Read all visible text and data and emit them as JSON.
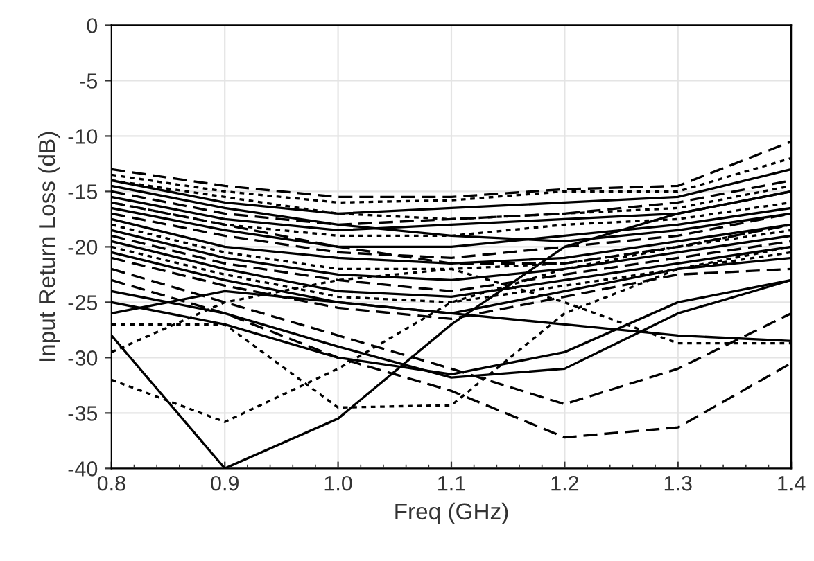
{
  "chart_data": {
    "type": "line",
    "xlabel": "Freq (GHz)",
    "ylabel": "Input Return Loss (dB)",
    "x": [
      0.8,
      0.9,
      1.0,
      1.1,
      1.2,
      1.3,
      1.4
    ],
    "xlim": [
      0.8,
      1.4
    ],
    "xticks": [
      {
        "value": 0.8,
        "label": "0.8"
      },
      {
        "value": 0.9,
        "label": "0.9"
      },
      {
        "value": 1.0,
        "label": "1.0"
      },
      {
        "value": 1.1,
        "label": "1.1"
      },
      {
        "value": 1.2,
        "label": "1.2"
      },
      {
        "value": 1.3,
        "label": "1.3"
      },
      {
        "value": 1.4,
        "label": "1.4"
      }
    ],
    "ylim": [
      -40,
      0
    ],
    "yticks": [
      -40,
      -35,
      -30,
      -25,
      -20,
      -15,
      -10,
      -5,
      0
    ],
    "grid": true,
    "marker": "none",
    "series": [
      {
        "color": "#000000",
        "line_style": "solid",
        "values": [
          -28,
          -40,
          -35.5,
          -27,
          -20,
          -17,
          -15
        ]
      },
      {
        "color": "#000000",
        "line_style": "dotted",
        "values": [
          -32,
          -35.8,
          -31,
          -25,
          -22,
          -20,
          -18
        ]
      },
      {
        "color": "#000000",
        "line_style": "dashed",
        "values": [
          -23,
          -26,
          -30,
          -33,
          -37.2,
          -36.3,
          -30.5
        ]
      },
      {
        "color": "#000000",
        "line_style": "dashed",
        "values": [
          -22,
          -25,
          -28,
          -31,
          -34.2,
          -31,
          -26
        ]
      },
      {
        "color": "#000000",
        "line_style": "solid",
        "values": [
          -25,
          -27,
          -30,
          -31.5,
          -29.5,
          -25,
          -23
        ]
      },
      {
        "color": "#000000",
        "line_style": "solid",
        "values": [
          -24,
          -26,
          -29,
          -31.8,
          -31,
          -26,
          -23
        ]
      },
      {
        "color": "#000000",
        "line_style": "dotted",
        "values": [
          -27,
          -27,
          -34.5,
          -34.3,
          -26,
          -22,
          -20
        ]
      },
      {
        "color": "#000000",
        "line_style": "dotted",
        "values": [
          -29.5,
          -25,
          -23,
          -22,
          -25,
          -28.7,
          -28.7
        ]
      },
      {
        "color": "#000000",
        "line_style": "solid",
        "values": [
          -26,
          -24,
          -25,
          -26,
          -27,
          -28,
          -28.5
        ]
      },
      {
        "color": "#000000",
        "line_style": "dashed",
        "values": [
          -13,
          -14.5,
          -15.5,
          -15.5,
          -14.8,
          -14.5,
          -10.5
        ]
      },
      {
        "color": "#000000",
        "line_style": "dotted",
        "values": [
          -13.5,
          -15,
          -16,
          -15.8,
          -15,
          -15,
          -12
        ]
      },
      {
        "color": "#000000",
        "line_style": "solid",
        "values": [
          -14,
          -16,
          -17,
          -16.5,
          -16,
          -15.5,
          -13
        ]
      },
      {
        "color": "#000000",
        "line_style": "dashed",
        "values": [
          -15,
          -17,
          -18,
          -17.5,
          -17,
          -16,
          -14
        ]
      },
      {
        "color": "#000000",
        "line_style": "solid",
        "values": [
          -15.5,
          -17.5,
          -18.5,
          -18,
          -17.5,
          -17,
          -15
        ]
      },
      {
        "color": "#000000",
        "line_style": "dotted",
        "values": [
          -16,
          -18,
          -19,
          -19,
          -18,
          -17.5,
          -16
        ]
      },
      {
        "color": "#000000",
        "line_style": "solid",
        "values": [
          -16.5,
          -18.5,
          -20,
          -20,
          -19,
          -18,
          -16.5
        ]
      },
      {
        "color": "#000000",
        "line_style": "dashed",
        "values": [
          -17,
          -19,
          -20.5,
          -21,
          -20,
          -19,
          -17
        ]
      },
      {
        "color": "#000000",
        "line_style": "solid",
        "values": [
          -17.5,
          -20,
          -21,
          -21.5,
          -21,
          -19.5,
          -18
        ]
      },
      {
        "color": "#000000",
        "line_style": "dotted",
        "values": [
          -18,
          -20.5,
          -22,
          -22,
          -21.5,
          -20,
          -18.5
        ]
      },
      {
        "color": "#000000",
        "line_style": "solid",
        "values": [
          -18.5,
          -21,
          -22.5,
          -23,
          -22,
          -20.5,
          -19
        ]
      },
      {
        "color": "#000000",
        "line_style": "dashed",
        "values": [
          -19,
          -21.5,
          -23,
          -24,
          -22.5,
          -21,
          -19.5
        ]
      },
      {
        "color": "#000000",
        "line_style": "solid",
        "values": [
          -19.5,
          -22,
          -24,
          -24.5,
          -23,
          -21.5,
          -20
        ]
      },
      {
        "color": "#000000",
        "line_style": "dotted",
        "values": [
          -20,
          -22.5,
          -24.5,
          -25,
          -23.5,
          -22,
          -20.5
        ]
      },
      {
        "color": "#000000",
        "line_style": "solid",
        "values": [
          -20.5,
          -23,
          -25,
          -26,
          -24,
          -22,
          -21
        ]
      },
      {
        "color": "#000000",
        "line_style": "dashed",
        "values": [
          -21,
          -23.5,
          -25.5,
          -26.5,
          -24.5,
          -22.5,
          -22
        ]
      },
      {
        "color": "#000000",
        "line_style": "solid",
        "values": [
          -14.5,
          -16.5,
          -18,
          -19,
          -19.5,
          -18.5,
          -17
        ]
      },
      {
        "color": "#000000",
        "line_style": "dashed",
        "values": [
          -16,
          -18,
          -20,
          -21.5,
          -21.5,
          -20,
          -18
        ]
      },
      {
        "color": "#000000",
        "line_style": "dotted",
        "values": [
          -14,
          -15.5,
          -17,
          -17.5,
          -17,
          -16.5,
          -14.5
        ]
      }
    ]
  }
}
